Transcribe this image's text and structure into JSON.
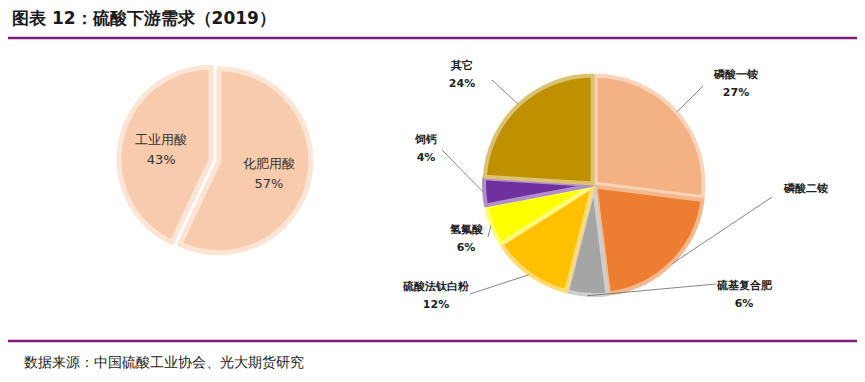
{
  "title": "图表 12：硫酸下游需求（2019）",
  "source": "数据来源：中国硫酸工业协会、光大期货研究",
  "chart_data": [
    {
      "type": "pie",
      "categories": [
        "化肥用酸",
        "工业用酸"
      ],
      "values": [
        57,
        43
      ],
      "value_labels": [
        "57%",
        "43%"
      ],
      "colors": [
        "#f8cbad",
        "#f8cbad"
      ],
      "data_labels": true
    },
    {
      "type": "pie",
      "categories": [
        "磷酸一铵",
        "磷酸二铵",
        "硫基复合肥",
        "硫酸法钛白粉",
        "氢氟酸",
        "饲钙",
        "其它"
      ],
      "values": [
        27,
        21,
        6,
        12,
        6,
        4,
        24
      ],
      "value_labels": [
        "27%",
        null,
        "6%",
        "12%",
        "6%",
        "4%",
        "24%"
      ],
      "colors": [
        "#f4b183",
        "#ed7d31",
        "#a5a5a5",
        "#ffc000",
        "#ffff00",
        "#7030a0",
        "#bf9000"
      ],
      "data_labels": true
    }
  ]
}
